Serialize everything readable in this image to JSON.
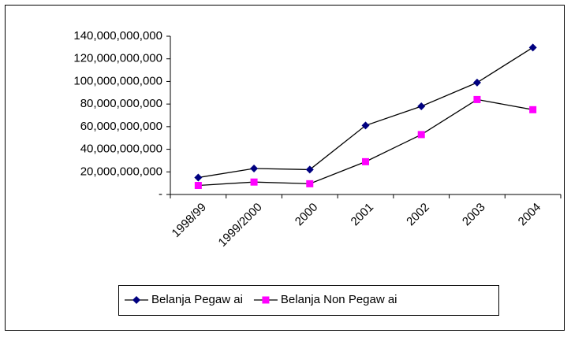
{
  "chart_data": {
    "type": "line",
    "categories": [
      "1998/99",
      "1999/2000",
      "2000",
      "2001",
      "2002",
      "2003",
      "2004"
    ],
    "series": [
      {
        "name": "Belanja Pegaw ai",
        "color": "#000080",
        "marker": "diamond",
        "values": [
          15000000000,
          23000000000,
          22000000000,
          61000000000,
          78000000000,
          99000000000,
          130000000000
        ]
      },
      {
        "name": "Belanja Non Pegaw ai",
        "color": "#ff00ff",
        "marker": "square",
        "values": [
          8000000000,
          11000000000,
          9500000000,
          29000000000,
          53000000000,
          84000000000,
          75000000000
        ]
      }
    ],
    "line_color": "#000000",
    "ylim": [
      0,
      140000000000
    ],
    "yticks": [
      {
        "value": 0,
        "label": "-"
      },
      {
        "value": 20000000000,
        "label": "20,000,000,000"
      },
      {
        "value": 40000000000,
        "label": "40,000,000,000"
      },
      {
        "value": 60000000000,
        "label": "60,000,000,000"
      },
      {
        "value": 80000000000,
        "label": "80,000,000,000"
      },
      {
        "value": 100000000000,
        "label": "100,000,000,000"
      },
      {
        "value": 120000000000,
        "label": "120,000,000,000"
      },
      {
        "value": 140000000000,
        "label": "140,000,000,000"
      }
    ],
    "grid": false,
    "legend": "bottom"
  }
}
